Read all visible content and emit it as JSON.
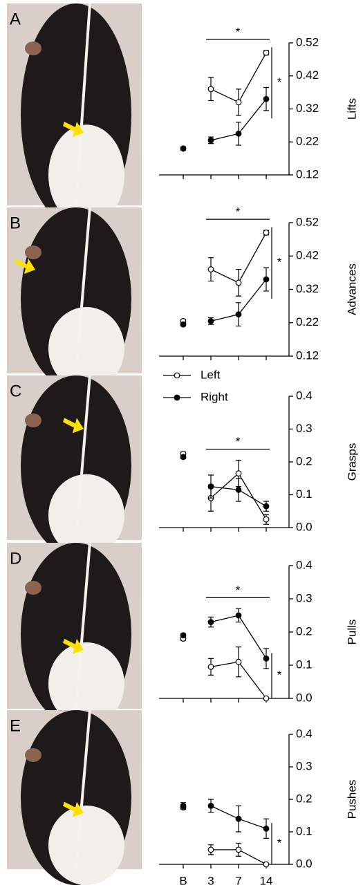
{
  "chart_data": [
    {
      "type": "line",
      "panel": "A",
      "ylabel": "Lifts",
      "categories": [
        null,
        null,
        null,
        null
      ],
      "ylim": [
        0.12,
        0.52
      ],
      "yticks": [
        0.12,
        0.22,
        0.32,
        0.42,
        0.52
      ],
      "series": [
        {
          "color": "#000000",
          "marker_fill": "#ffffff",
          "values": [
            0.2,
            0.38,
            0.34,
            0.49
          ],
          "errors": [
            0.005,
            0.035,
            0.04,
            0.007
          ]
        },
        {
          "color": "#000000",
          "marker_fill": "#000000",
          "values": [
            0.2,
            0.225,
            0.245,
            0.35
          ],
          "errors": [
            0.005,
            0.01,
            0.035,
            0.035
          ]
        }
      ],
      "sig_across": "*",
      "sig_between": "*"
    },
    {
      "type": "line",
      "panel": "B",
      "ylabel": "Advances",
      "categories": [
        null,
        null,
        null,
        null
      ],
      "ylim": [
        0.12,
        0.52
      ],
      "yticks": [
        0.12,
        0.22,
        0.32,
        0.42,
        0.52
      ],
      "series": [
        {
          "color": "#000000",
          "marker_fill": "#ffffff",
          "values": [
            0.225,
            0.38,
            0.34,
            0.49
          ],
          "errors": [
            0.005,
            0.035,
            0.04,
            0.007
          ]
        },
        {
          "color": "#000000",
          "marker_fill": "#000000",
          "values": [
            0.215,
            0.225,
            0.245,
            0.35
          ],
          "errors": [
            0.005,
            0.01,
            0.035,
            0.035
          ]
        }
      ],
      "sig_across": "*",
      "sig_between": "*"
    },
    {
      "type": "line",
      "panel": "C",
      "ylabel": "Grasps",
      "categories": [
        null,
        null,
        null,
        null
      ],
      "ylim": [
        0,
        0.4
      ],
      "yticks": [
        {
          "value": 0,
          "label": "0.0"
        },
        0.1,
        0.2,
        0.3,
        0.4
      ],
      "legend": true,
      "series": [
        {
          "name": "Left",
          "color": "#000000",
          "marker_fill": "#ffffff",
          "values": [
            0.225,
            0.09,
            0.165,
            0.025
          ],
          "errors": [
            0.005,
            0.04,
            0.04,
            0.015
          ]
        },
        {
          "name": "Right",
          "color": "#000000",
          "marker_fill": "#000000",
          "values": [
            0.215,
            0.125,
            0.115,
            0.065
          ],
          "errors": [
            0.005,
            0.035,
            0.035,
            0.015
          ]
        }
      ],
      "sig_across": "*"
    },
    {
      "type": "line",
      "panel": "D",
      "ylabel": "Pulls",
      "categories": [
        null,
        null,
        null,
        null
      ],
      "ylim": [
        0,
        0.4
      ],
      "yticks": [
        {
          "value": 0,
          "label": "0.0"
        },
        0.1,
        0.2,
        0.3,
        0.4
      ],
      "series": [
        {
          "color": "#000000",
          "marker_fill": "#ffffff",
          "values": [
            0.18,
            0.095,
            0.11,
            0
          ],
          "errors": [
            0.005,
            0.025,
            0.045,
            0
          ]
        },
        {
          "color": "#000000",
          "marker_fill": "#000000",
          "values": [
            0.19,
            0.23,
            0.25,
            0.12
          ],
          "errors": [
            0.005,
            0.015,
            0.02,
            0.03
          ]
        }
      ],
      "sig_across": "*",
      "sig_between": "*"
    },
    {
      "type": "line",
      "panel": "E",
      "ylabel": "Pushes",
      "categories": [
        "B",
        "3",
        "7",
        "14"
      ],
      "ylim": [
        0,
        0.4
      ],
      "yticks": [
        {
          "value": 0,
          "label": "0.0"
        },
        0.1,
        0.2,
        0.3,
        0.4
      ],
      "series": [
        {
          "color": "#000000",
          "marker_fill": "#ffffff",
          "values": [
            0.175,
            0.045,
            0.045,
            0
          ],
          "errors": [
            0.005,
            0.015,
            0.02,
            0
          ]
        },
        {
          "color": "#000000",
          "marker_fill": "#000000",
          "values": [
            0.18,
            0.18,
            0.14,
            0.11
          ],
          "errors": [
            0.01,
            0.02,
            0.04,
            0.03
          ]
        }
      ],
      "sig_between": "*"
    }
  ]
}
